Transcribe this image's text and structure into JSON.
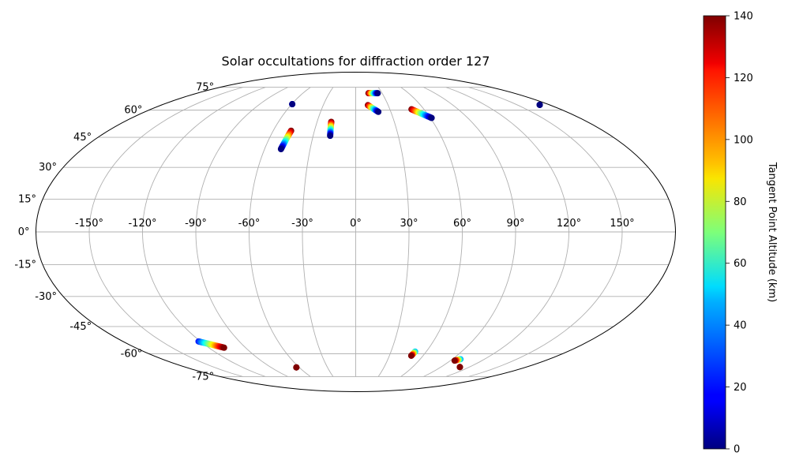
{
  "chart_data": {
    "type": "scatter",
    "projection": "mollweide",
    "title": "Solar occultations for diffraction order 127",
    "xlabel": "",
    "ylabel": "",
    "grid": true,
    "xlim": [
      -180,
      180
    ],
    "ylim": [
      -90,
      90
    ],
    "x_ticks": [
      -150,
      -120,
      -90,
      -60,
      -30,
      0,
      30,
      60,
      90,
      120,
      150
    ],
    "x_tick_labels": [
      "-150°",
      "-120°",
      "-90°",
      "-60°",
      "-30°",
      "0°",
      "30°",
      "60°",
      "90°",
      "120°",
      "150°"
    ],
    "y_ticks": [
      -75,
      -60,
      -45,
      -30,
      -15,
      0,
      15,
      30,
      45,
      60,
      75
    ],
    "y_tick_labels": [
      "-75°",
      "-60°",
      "-45°",
      "-30°",
      "-15°",
      "0°",
      "15°",
      "30°",
      "45°",
      "60°",
      "75°"
    ],
    "colorbar": {
      "label": "Tangent Point Altitude (km)",
      "colormap": "jet",
      "range": [
        0,
        140
      ],
      "ticks": [
        0,
        20,
        40,
        60,
        80,
        100,
        120,
        140
      ],
      "placement": "right"
    },
    "tracks": [
      {
        "start": {
          "lon": -59.5,
          "lat": 63.6,
          "alt": 25
        },
        "end": {
          "lon": -59.5,
          "lat": 63.6,
          "alt": 0
        }
      },
      {
        "start": {
          "lon": -47.0,
          "lat": 48.5,
          "alt": 140
        },
        "end": {
          "lon": -49.2,
          "lat": 39.0,
          "alt": 0
        }
      },
      {
        "start": {
          "lon": -19.0,
          "lat": 53.3,
          "alt": 140
        },
        "end": {
          "lon": -18.0,
          "lat": 45.8,
          "alt": 0
        }
      },
      {
        "start": {
          "lon": 14.5,
          "lat": 70.7,
          "alt": 140
        },
        "end": {
          "lon": 25.0,
          "lat": 70.7,
          "alt": 0
        }
      },
      {
        "start": {
          "lon": 11.3,
          "lat": 63.0,
          "alt": 140
        },
        "end": {
          "lon": 19.3,
          "lat": 59.0,
          "alt": 0
        }
      },
      {
        "start": {
          "lon": 49.0,
          "lat": 60.5,
          "alt": 140
        },
        "end": {
          "lon": 61.0,
          "lat": 55.5,
          "alt": 0
        }
      },
      {
        "start": {
          "lon": 171.0,
          "lat": 63.2,
          "alt": 0
        },
        "end": {
          "lon": 171.0,
          "lat": 63.2,
          "alt": 0
        }
      },
      {
        "start": {
          "lon": -121.5,
          "lat": -53.0,
          "alt": 20
        },
        "end": {
          "lon": -107.5,
          "lat": -56.5,
          "alt": 140
        }
      },
      {
        "start": {
          "lon": -63.0,
          "lat": -68.5,
          "alt": 140
        },
        "end": {
          "lon": -63.0,
          "lat": -68.5,
          "alt": 140
        }
      },
      {
        "start": {
          "lon": 50.5,
          "lat": -58.8,
          "alt": 45
        },
        "end": {
          "lon": 49.5,
          "lat": -61.2,
          "alt": 140
        }
      },
      {
        "start": {
          "lon": 97.5,
          "lat": -63.3,
          "alt": 40
        },
        "end": {
          "lon": 94.0,
          "lat": -64.2,
          "alt": 140
        }
      },
      {
        "start": {
          "lon": 110.0,
          "lat": -68.3,
          "alt": 140
        },
        "end": {
          "lon": 110.0,
          "lat": -68.3,
          "alt": 140
        }
      }
    ]
  }
}
